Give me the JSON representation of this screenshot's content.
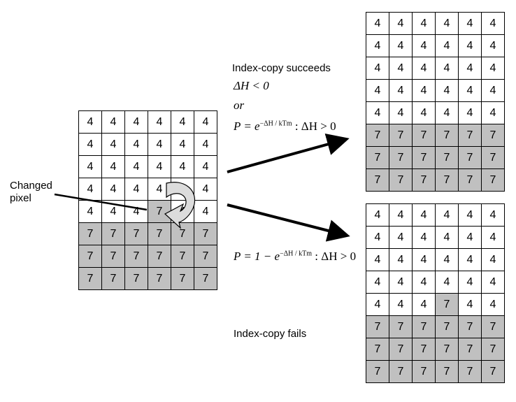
{
  "labels": {
    "changed": "Changed",
    "pixel": "pixel",
    "succeeds": "Index-copy succeeds",
    "fails": "Index-copy fails",
    "or": "or",
    "dh_lt": "ΔH < 0",
    "p_prefix": "P = e",
    "p_exp": "−ΔH / kTm",
    "p_suffix": " : ΔH > 0",
    "p2_prefix": "P = 1 − e",
    "p2_exp": "−ΔH / kTm",
    "p2_suffix": " : ΔH > 0"
  },
  "grids": {
    "left": [
      [
        "4",
        "4",
        "4",
        "4",
        "4",
        "4"
      ],
      [
        "4",
        "4",
        "4",
        "4",
        "4",
        "4"
      ],
      [
        "4",
        "4",
        "4",
        "4",
        "4",
        "4"
      ],
      [
        "4",
        "4",
        "4",
        "4",
        "4",
        "4"
      ],
      [
        "4",
        "4",
        "4",
        "7",
        "4",
        "4"
      ],
      [
        "7",
        "7",
        "7",
        "7",
        "7",
        "7"
      ],
      [
        "7",
        "7",
        "7",
        "7",
        "7",
        "7"
      ],
      [
        "7",
        "7",
        "7",
        "7",
        "7",
        "7"
      ]
    ],
    "top": [
      [
        "4",
        "4",
        "4",
        "4",
        "4",
        "4"
      ],
      [
        "4",
        "4",
        "4",
        "4",
        "4",
        "4"
      ],
      [
        "4",
        "4",
        "4",
        "4",
        "4",
        "4"
      ],
      [
        "4",
        "4",
        "4",
        "4",
        "4",
        "4"
      ],
      [
        "4",
        "4",
        "4",
        "4",
        "4",
        "4"
      ],
      [
        "7",
        "7",
        "7",
        "7",
        "7",
        "7"
      ],
      [
        "7",
        "7",
        "7",
        "7",
        "7",
        "7"
      ],
      [
        "7",
        "7",
        "7",
        "7",
        "7",
        "7"
      ]
    ],
    "bottom": [
      [
        "4",
        "4",
        "4",
        "4",
        "4",
        "4"
      ],
      [
        "4",
        "4",
        "4",
        "4",
        "4",
        "4"
      ],
      [
        "4",
        "4",
        "4",
        "4",
        "4",
        "4"
      ],
      [
        "4",
        "4",
        "4",
        "4",
        "4",
        "4"
      ],
      [
        "4",
        "4",
        "4",
        "7",
        "4",
        "4"
      ],
      [
        "7",
        "7",
        "7",
        "7",
        "7",
        "7"
      ],
      [
        "7",
        "7",
        "7",
        "7",
        "7",
        "7"
      ],
      [
        "7",
        "7",
        "7",
        "7",
        "7",
        "7"
      ]
    ]
  },
  "colors": {
    "shade": "#c0c0c0",
    "line": "#000000"
  }
}
